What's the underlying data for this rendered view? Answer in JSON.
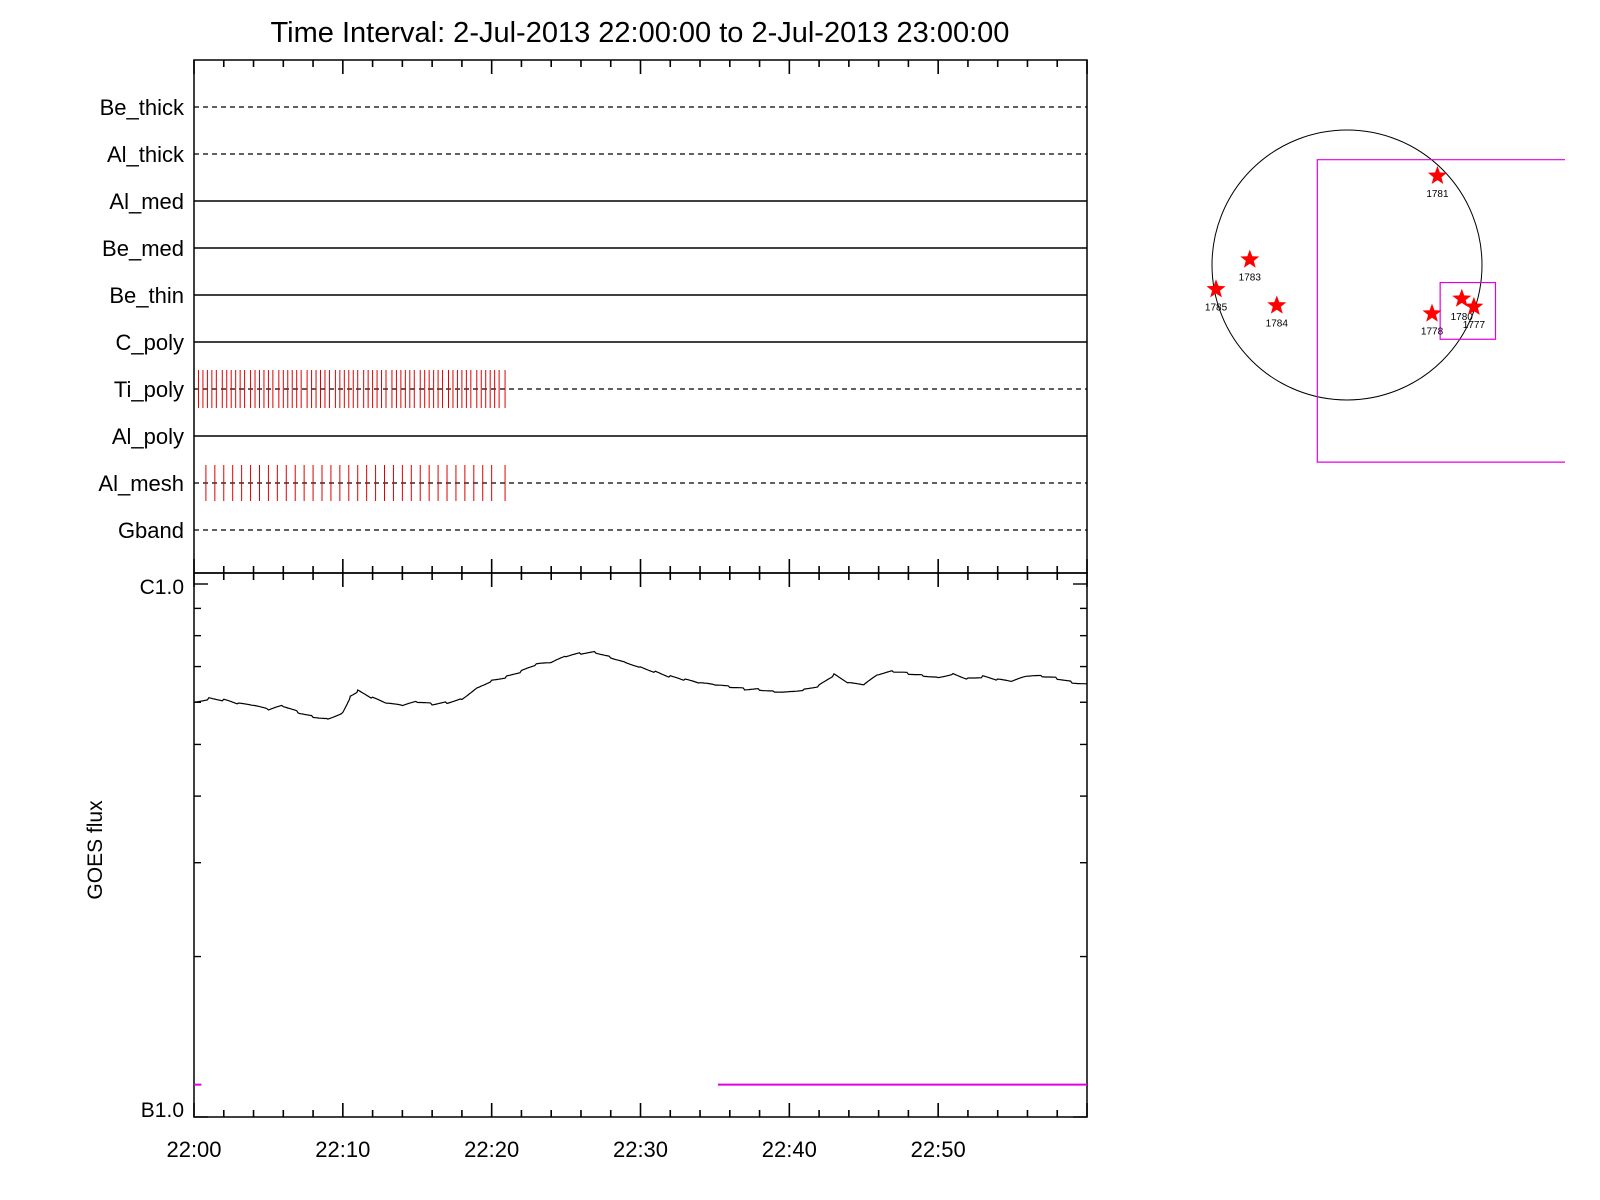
{
  "title": "Time Interval:  2-Jul-2013 22:00:00 to  2-Jul-2013 23:00:00",
  "colors": {
    "axis": "#000000",
    "hxr_ticks": "#e00000",
    "goes_flux": "#000000",
    "goes_marker": "#e000e0",
    "region_star": "#ff0000",
    "fov_box": "#e000e0"
  },
  "chart_data": [
    {
      "type": "line",
      "name": "channel-state-panel",
      "x_range_minutes": [
        0,
        60
      ],
      "channels": [
        {
          "label": "Be_thick",
          "style": "dashed",
          "tick_times": [],
          "tick_size": "none"
        },
        {
          "label": "Al_thick",
          "style": "dashed",
          "tick_times": [],
          "tick_size": "none"
        },
        {
          "label": "Al_med",
          "style": "solid",
          "tick_times": [],
          "tick_size": "none"
        },
        {
          "label": "Be_med",
          "style": "solid",
          "tick_times": [],
          "tick_size": "none"
        },
        {
          "label": "Be_thin",
          "style": "solid",
          "tick_times": [],
          "tick_size": "none"
        },
        {
          "label": "C_poly",
          "style": "solid",
          "tick_times": [],
          "tick_size": "none"
        },
        {
          "label": "Ti_poly",
          "style": "dashed",
          "tick_times": [
            0.3,
            0.6,
            0.9,
            1.2,
            1.5,
            1.9,
            2.2,
            2.5,
            2.8,
            3.1,
            3.4,
            3.8,
            4.1,
            4.4,
            4.7,
            5.0,
            5.3,
            5.7,
            6.0,
            6.3,
            6.6,
            6.9,
            7.2,
            7.6,
            7.9,
            8.2,
            8.5,
            8.8,
            9.1,
            9.5,
            9.8,
            10.1,
            10.4,
            10.7,
            11.0,
            11.4,
            11.7,
            12.0,
            12.3,
            12.6,
            12.9,
            13.3,
            13.6,
            13.9,
            14.2,
            14.5,
            14.8,
            15.2,
            15.5,
            15.8,
            16.1,
            16.4,
            16.7,
            17.1,
            17.4,
            17.7,
            18.0,
            18.3,
            18.6,
            19.0,
            19.3,
            19.6,
            19.9,
            20.2,
            20.5,
            20.9
          ],
          "tick_size": "large"
        },
        {
          "label": "Al_poly",
          "style": "solid",
          "tick_times": [],
          "tick_size": "none"
        },
        {
          "label": "Al_mesh",
          "style": "dashed",
          "tick_times": [
            0.8,
            1.4,
            2.0,
            2.6,
            3.2,
            3.8,
            4.4,
            5.0,
            5.6,
            6.2,
            6.8,
            7.4,
            8.0,
            8.6,
            9.2,
            9.8,
            10.4,
            11.0,
            11.6,
            12.2,
            12.8,
            13.4,
            14.0,
            14.6,
            15.2,
            15.8,
            16.4,
            17.0,
            17.6,
            18.2,
            18.8,
            19.4,
            20.0,
            20.9
          ],
          "tick_size": "medium"
        },
        {
          "label": "Gband",
          "style": "dashed",
          "tick_times": [],
          "tick_size": "none"
        }
      ]
    },
    {
      "type": "line",
      "name": "goes-flux-panel",
      "ylabel": "GOES flux",
      "y_scale": "log",
      "ylim": [
        1e-07,
        1e-06
      ],
      "ytick_labels": [
        "C1.0",
        "B1.0"
      ],
      "x_range_minutes": [
        0,
        60
      ],
      "xtick_labels": [
        "22:00",
        "22:10",
        "22:20",
        "22:30",
        "22:40",
        "22:50"
      ],
      "xtick_minutes": [
        0,
        10,
        20,
        30,
        40,
        50
      ],
      "series": [
        {
          "values": [
            [
              0,
              6e-07
            ],
            [
              1,
              6.1e-07
            ],
            [
              2,
              6.05e-07
            ],
            [
              3,
              5.95e-07
            ],
            [
              4,
              5.9e-07
            ],
            [
              5,
              5.8e-07
            ],
            [
              6,
              5.9e-07
            ],
            [
              7,
              5.75e-07
            ],
            [
              8,
              5.65e-07
            ],
            [
              9,
              5.6e-07
            ],
            [
              10,
              5.75e-07
            ],
            [
              10.5,
              6.15e-07
            ],
            [
              11,
              6.3e-07
            ],
            [
              12,
              6.1e-07
            ],
            [
              13,
              5.95e-07
            ],
            [
              14,
              5.9e-07
            ],
            [
              15,
              6e-07
            ],
            [
              16,
              5.95e-07
            ],
            [
              17,
              6e-07
            ],
            [
              18,
              6.1e-07
            ],
            [
              19,
              6.4e-07
            ],
            [
              20,
              6.6e-07
            ],
            [
              21,
              6.7e-07
            ],
            [
              22,
              6.85e-07
            ],
            [
              23,
              7.05e-07
            ],
            [
              24,
              7.1e-07
            ],
            [
              25,
              7.3e-07
            ],
            [
              26,
              7.4e-07
            ],
            [
              27,
              7.45e-07
            ],
            [
              28,
              7.3e-07
            ],
            [
              29,
              7.15e-07
            ],
            [
              30,
              7e-07
            ],
            [
              31,
              6.85e-07
            ],
            [
              32,
              6.7e-07
            ],
            [
              33,
              6.6e-07
            ],
            [
              34,
              6.5e-07
            ],
            [
              35,
              6.45e-07
            ],
            [
              36,
              6.4e-07
            ],
            [
              37,
              6.35e-07
            ],
            [
              38,
              6.35e-07
            ],
            [
              39,
              6.3e-07
            ],
            [
              40,
              6.3e-07
            ],
            [
              41,
              6.35e-07
            ],
            [
              42,
              6.45e-07
            ],
            [
              43,
              6.75e-07
            ],
            [
              44,
              6.5e-07
            ],
            [
              45,
              6.45e-07
            ],
            [
              46,
              6.75e-07
            ],
            [
              47,
              6.85e-07
            ],
            [
              48,
              6.8e-07
            ],
            [
              49,
              6.75e-07
            ],
            [
              50,
              6.7e-07
            ],
            [
              51,
              6.8e-07
            ],
            [
              52,
              6.65e-07
            ],
            [
              53,
              6.7e-07
            ],
            [
              54,
              6.6e-07
            ],
            [
              55,
              6.55e-07
            ],
            [
              56,
              6.7e-07
            ],
            [
              57,
              6.7e-07
            ],
            [
              58,
              6.65e-07
            ],
            [
              59,
              6.55e-07
            ],
            [
              60,
              6.5e-07
            ]
          ]
        }
      ],
      "markers": [
        {
          "y": 1.15e-07,
          "x_start": 0,
          "x_end": 0.5
        },
        {
          "y": 1.15e-07,
          "x_start": 35.2,
          "x_end": 60
        }
      ]
    },
    {
      "type": "scatter",
      "name": "solar-disk-map",
      "regions": [
        {
          "label": "1781",
          "x": 0.67,
          "y": 0.66
        },
        {
          "label": "1783",
          "x": -0.72,
          "y": 0.04
        },
        {
          "label": "1785",
          "x": -0.97,
          "y": -0.18
        },
        {
          "label": "1784",
          "x": -0.52,
          "y": -0.3
        },
        {
          "label": "1780",
          "x": 0.85,
          "y": -0.25
        },
        {
          "label": "1777",
          "x": 0.94,
          "y": -0.31
        },
        {
          "label": "1778",
          "x": 0.63,
          "y": -0.36
        }
      ],
      "boxes": [
        {
          "x0": -0.22,
          "x1": 1.62,
          "y0": -1.46,
          "y1": 0.78
        },
        {
          "x0": 0.69,
          "x1": 1.1,
          "y0": -0.55,
          "y1": -0.13
        }
      ]
    }
  ]
}
